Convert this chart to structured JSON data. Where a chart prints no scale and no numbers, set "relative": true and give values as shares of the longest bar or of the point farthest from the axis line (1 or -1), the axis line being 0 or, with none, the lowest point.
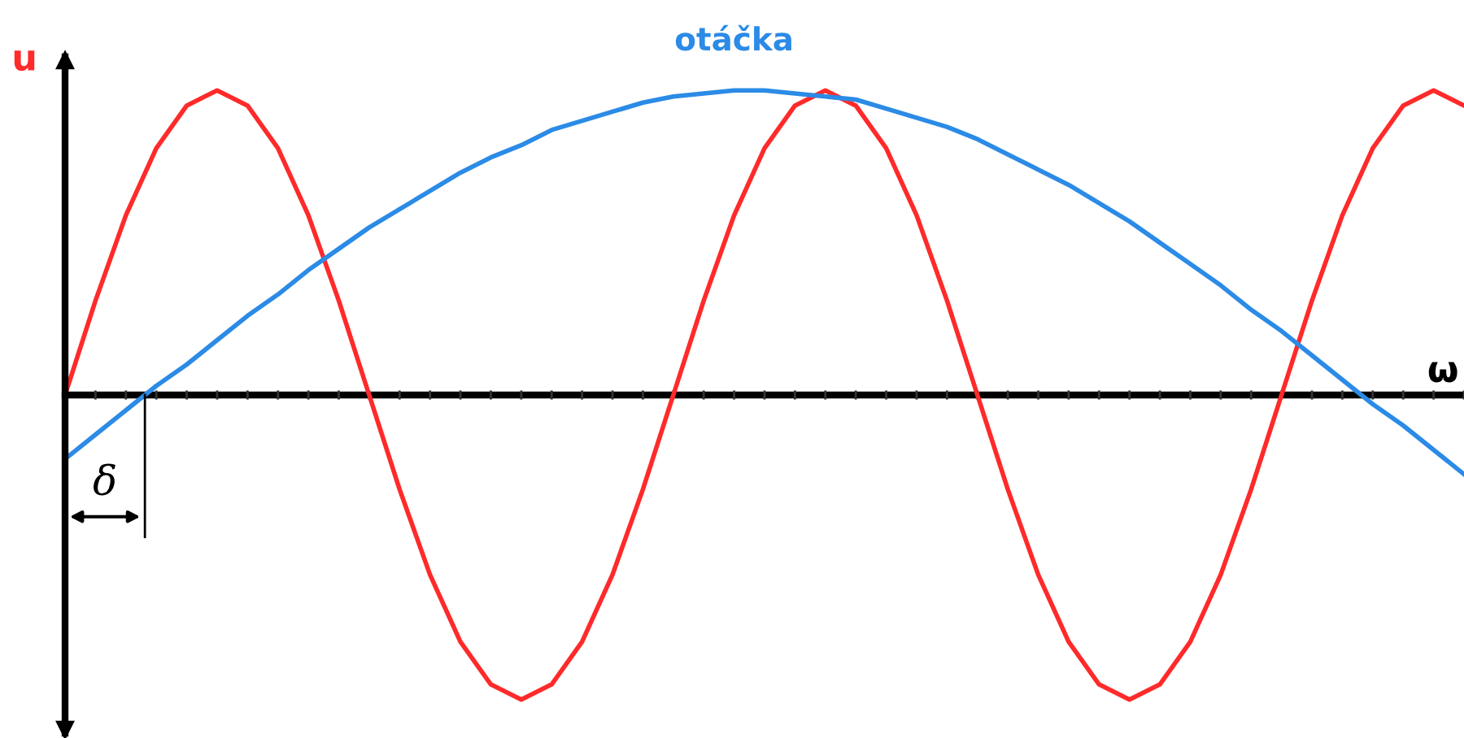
{
  "chart_data": {
    "type": "line",
    "relative": true,
    "xlabel": "ω",
    "ylabel": "u",
    "annotations": [
      "δ"
    ],
    "grid": false,
    "legend": false,
    "marker": "none",
    "line_style": "solid",
    "categories": [
      null,
      null,
      null,
      null,
      null,
      null,
      null,
      null,
      null,
      null,
      null,
      null,
      null,
      null,
      null,
      null,
      null,
      null,
      null,
      null,
      null,
      null,
      null,
      null,
      null,
      null,
      null,
      null,
      null,
      null,
      null,
      null,
      null,
      null,
      null,
      null,
      null,
      null,
      null,
      null,
      null,
      null,
      null,
      null,
      null,
      null,
      null
    ],
    "series": [
      {
        "color": "#ff2a2a",
        "values": [
          0,
          0.31,
          0.59,
          0.81,
          0.95,
          1,
          0.95,
          0.81,
          0.59,
          0.31,
          0,
          -0.31,
          -0.59,
          -0.81,
          -0.95,
          -1,
          -0.95,
          -0.81,
          -0.59,
          -0.31,
          0,
          0.31,
          0.59,
          0.81,
          0.95,
          1,
          0.95,
          0.81,
          0.59,
          0.31,
          0,
          -0.31,
          -0.59,
          -0.81,
          -0.95,
          -1,
          -0.95,
          -0.81,
          -0.59,
          -0.31,
          0,
          0.31,
          0.59,
          0.81,
          0.95,
          1,
          0.95
        ]
      },
      {
        "name": "otáčka",
        "color": "#2b8be6",
        "values": [
          -0.21,
          -0.13,
          -0.05,
          0.03,
          0.1,
          0.18,
          0.26,
          0.33,
          0.41,
          0.48,
          0.55,
          0.61,
          0.67,
          0.73,
          0.78,
          0.82,
          0.87,
          0.9,
          0.93,
          0.96,
          0.98,
          0.99,
          1,
          1,
          0.99,
          0.98,
          0.97,
          0.94,
          0.91,
          0.88,
          0.84,
          0.79,
          0.74,
          0.69,
          0.63,
          0.57,
          0.5,
          0.43,
          0.36,
          0.28,
          0.21,
          0.13,
          0.05,
          -0.03,
          -0.1,
          -0.18,
          -0.26
        ]
      }
    ]
  }
}
